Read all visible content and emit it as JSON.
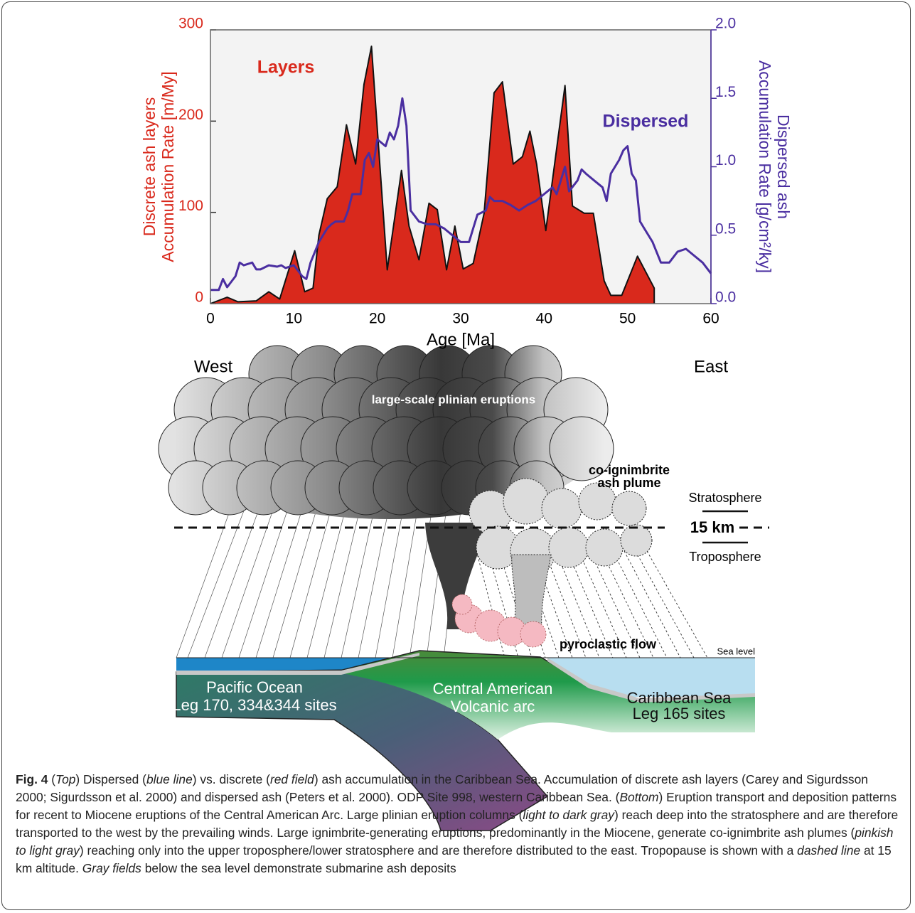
{
  "chart_data": {
    "type": "combo",
    "xlabel": "Age [Ma]",
    "ylabel": [
      "Discrete ash layers",
      "Accumulation Rate [m/My]"
    ],
    "y2label": [
      "Dispersed ash",
      "Accumulation Rate [g/cm²/ky]"
    ],
    "xlim": [
      0,
      60
    ],
    "xticks": [
      0,
      10,
      20,
      30,
      40,
      50,
      60
    ],
    "ylim": [
      0,
      300
    ],
    "yticks": [
      0,
      100,
      200,
      300
    ],
    "y2lim": [
      0,
      2
    ],
    "y2ticks": [
      {
        "value": 0,
        "label": "0.0"
      },
      0.5,
      {
        "value": 1,
        "label": "1.0"
      },
      1.5,
      {
        "value": 2,
        "label": "2.0"
      }
    ],
    "series": [
      {
        "name": "Layers",
        "type": "area",
        "color": "#d9291c",
        "x": [
          0,
          2,
          3.3,
          5.5,
          7,
          8.3,
          10.1,
          11.3,
          12.3,
          13,
          14,
          15.2,
          16.3,
          17.4,
          18.4,
          19.3,
          21.2,
          22.9,
          23.8,
          25,
          26.2,
          27.2,
          28.3,
          29.3,
          30.3,
          31.5,
          32.8,
          34,
          35,
          36.3,
          37.4,
          38.3,
          39.1,
          40.2,
          42.5,
          43.4,
          44.8,
          45.9,
          47.2,
          48,
          49.3,
          51.2,
          53.2,
          53.2
        ],
        "values": [
          0,
          7,
          2,
          3,
          13,
          5,
          58,
          13,
          17,
          75,
          115,
          128,
          196,
          153,
          240,
          282,
          37,
          146,
          85,
          48,
          110,
          103,
          37,
          85,
          38,
          44,
          99,
          231,
          243,
          153,
          161,
          189,
          153,
          80,
          239,
          107,
          99,
          99,
          25,
          9,
          9,
          52,
          17,
          0
        ]
      },
      {
        "name": "Dispersed",
        "type": "line",
        "color": "#4a2ea0",
        "axis": "y2",
        "x": [
          0,
          1,
          1.5,
          2,
          3,
          3.5,
          4,
          5,
          5.5,
          6,
          7,
          8,
          8.5,
          9,
          10,
          11,
          11.5,
          12,
          13,
          14,
          14.5,
          15,
          16,
          16.5,
          17,
          18,
          18.5,
          19,
          19.5,
          20,
          21,
          21.5,
          22,
          22.5,
          23,
          23.5,
          24,
          25,
          26,
          27,
          28,
          29,
          30,
          31,
          31.5,
          32,
          33,
          33.5,
          34,
          35,
          36,
          37,
          38,
          39,
          40,
          41,
          41.5,
          42,
          42.5,
          43,
          44,
          44.5,
          45,
          46,
          47,
          47.5,
          48,
          49,
          49.5,
          50,
          50.5,
          51,
          51.5,
          52,
          53,
          54,
          55,
          56,
          57,
          58,
          59,
          60
        ],
        "values": [
          0.1,
          0.1,
          0.18,
          0.12,
          0.2,
          0.3,
          0.28,
          0.3,
          0.25,
          0.25,
          0.28,
          0.27,
          0.28,
          0.26,
          0.28,
          0.2,
          0.18,
          0.3,
          0.45,
          0.55,
          0.58,
          0.6,
          0.6,
          0.68,
          0.8,
          0.8,
          1.05,
          1.1,
          1.0,
          1.2,
          1.15,
          1.25,
          1.2,
          1.3,
          1.5,
          1.3,
          0.68,
          0.6,
          0.58,
          0.58,
          0.55,
          0.5,
          0.45,
          0.45,
          0.55,
          0.65,
          0.68,
          0.78,
          0.75,
          0.75,
          0.72,
          0.68,
          0.72,
          0.75,
          0.8,
          0.85,
          0.8,
          0.9,
          1.0,
          0.82,
          0.9,
          0.98,
          0.95,
          0.9,
          0.85,
          0.75,
          0.95,
          1.05,
          1.12,
          1.15,
          0.95,
          0.9,
          0.6,
          0.55,
          0.45,
          0.3,
          0.3,
          0.38,
          0.4,
          0.35,
          0.3,
          0.22
        ]
      }
    ]
  },
  "diagram": {
    "west": "West",
    "east": "East",
    "plinian": "large-scale plinian eruptions",
    "coignimbrite": [
      "co-ignimbrite",
      "ash plume"
    ],
    "stratosphere": "Stratosphere",
    "altitude": "15 km",
    "troposphere": "Troposphere",
    "pyroclastic": "pyroclastic flow",
    "sea_level": "Sea level",
    "regions": [
      [
        "Pacific Ocean",
        "Leg 170, 334&344 sites"
      ],
      [
        "Central American",
        "Volcanic arc"
      ],
      [
        "Caribbean Sea",
        "Leg 165 sites"
      ]
    ]
  },
  "caption": {
    "label": "Fig. 4",
    "segments": [
      {
        "text": " ("
      },
      {
        "text": "Top",
        "italic": true
      },
      {
        "text": ") Dispersed ("
      },
      {
        "text": "blue line",
        "italic": true
      },
      {
        "text": ") vs. discrete ("
      },
      {
        "text": "red field",
        "italic": true
      },
      {
        "text": ") ash accumulation in the Caribbean Sea. Accumulation of discrete ash layers (Carey and Sigurdsson 2000; Sigurdsson et al. 2000) and dispersed ash (Peters et al. 2000). ODP Site 998, western Caribbean Sea. ("
      },
      {
        "text": "Bottom",
        "italic": true
      },
      {
        "text": ") Eruption transport and deposition patterns for recent to Miocene eruptions of the Central American Arc. Large plinian eruption columns ("
      },
      {
        "text": "light to dark gray",
        "italic": true
      },
      {
        "text": ") reach deep into the stratosphere and are therefore transported to the west by the prevailing winds. Large ignimbrite-generating eruptions, predominantly in the Miocene, generate co-ignimbrite ash plumes ("
      },
      {
        "text": "pinkish to light gray",
        "italic": true
      },
      {
        "text": ") reaching only into the upper troposphere/lower stratosphere and are therefore distributed to the east. Tropopause is shown with a "
      },
      {
        "text": "dashed line",
        "italic": true
      },
      {
        "text": " at 15 km altitude. "
      },
      {
        "text": "Gray fields",
        "italic": true
      },
      {
        "text": " below the sea level demonstrate submarine ash deposits"
      }
    ]
  }
}
